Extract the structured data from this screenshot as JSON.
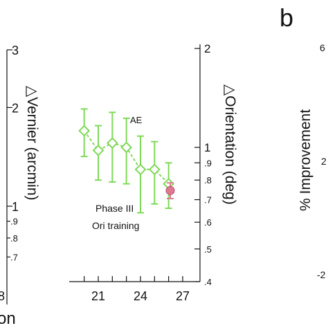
{
  "panel_label": "b",
  "chart_data": {
    "type": "scatter",
    "annotation": "AE",
    "phase_text": [
      "Phase III",
      "Ori training"
    ],
    "x_ticks": [
      21,
      24,
      27
    ],
    "x_tick_partial": "8",
    "x_label_partial": "on",
    "left_axis": {
      "label": "△Vernier (arcmin)",
      "scale": "log",
      "range": [
        0.65,
        3.1
      ],
      "major_ticks": [
        {
          "v": 3,
          "label": "3"
        },
        {
          "v": 2,
          "label": "2"
        },
        {
          "v": 1,
          "label": "1"
        }
      ],
      "minor_ticks": [
        {
          "v": 0.9,
          "label": ".9"
        },
        {
          "v": 0.8,
          "label": ".8"
        },
        {
          "v": 0.7,
          "label": ".7"
        }
      ]
    },
    "right_axis": {
      "label": "△Orientation (deg)",
      "scale": "log",
      "range": [
        0.4,
        2
      ],
      "ticks": [
        {
          "v": 2,
          "label": "2"
        },
        {
          "v": 1,
          "label": "1"
        },
        {
          "v": 0.9,
          "label": ".9"
        },
        {
          "v": 0.8,
          "label": ".8"
        },
        {
          "v": 0.7,
          "label": ".7"
        },
        {
          "v": 0.6,
          "label": ".6"
        },
        {
          "v": 0.5,
          "label": ".5"
        },
        {
          "v": 0.4,
          "label": ".4"
        }
      ]
    },
    "series": [
      {
        "marker": "open-diamond",
        "color": "#7ed957",
        "line": "dashed",
        "x": [
          20,
          21,
          22,
          23,
          24,
          25,
          26
        ],
        "y": [
          1.12,
          0.98,
          1.03,
          1.0,
          0.86,
          0.86,
          0.78
        ],
        "err": [
          0.18,
          0.18,
          0.24,
          0.22,
          0.22,
          0.18,
          0.12
        ]
      },
      {
        "marker": "filled-circle",
        "color": "#e0788f",
        "x": [
          27
        ],
        "y": [
          0.745
        ],
        "err": [
          0.04
        ]
      }
    ],
    "right_panel": {
      "ylabel": "% Improvement",
      "tick_partial": [
        "6",
        "2",
        "-2"
      ]
    }
  }
}
